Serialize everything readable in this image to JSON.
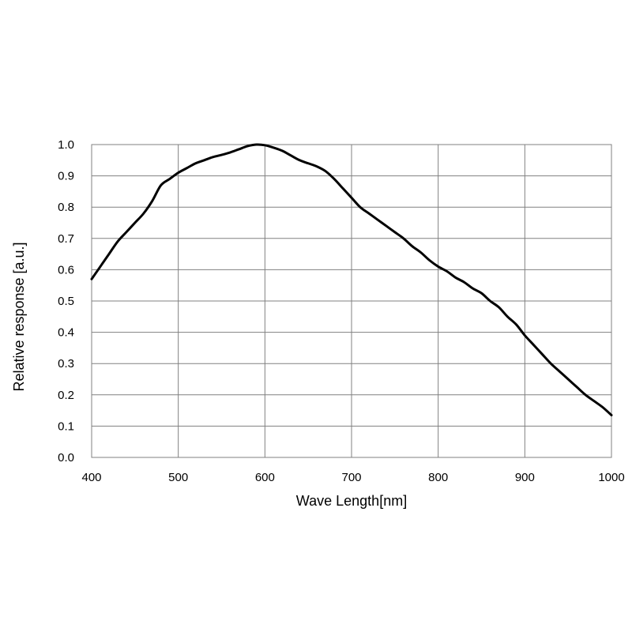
{
  "chart_data": {
    "type": "line",
    "title": "",
    "xlabel": "Wave Length[nm]",
    "ylabel": "Relative response [a.u.]",
    "xlim": [
      400,
      1000
    ],
    "ylim": [
      0.0,
      1.0
    ],
    "x_ticks": [
      400,
      500,
      600,
      700,
      800,
      900,
      1000
    ],
    "x_tick_labels": [
      "400",
      "500",
      "600",
      "700",
      "800",
      "900",
      "1000"
    ],
    "y_ticks": [
      0.0,
      0.1,
      0.2,
      0.3,
      0.4,
      0.5,
      0.6,
      0.7,
      0.8,
      0.9,
      1.0
    ],
    "y_tick_labels": [
      "0.0",
      "0.1",
      "0.2",
      "0.3",
      "0.4",
      "0.5",
      "0.6",
      "0.7",
      "0.8",
      "0.9",
      "1.0"
    ],
    "grid": true,
    "legend": "none",
    "line_color": "#000000",
    "grid_color": "#808080",
    "series": [
      {
        "x": [
          400,
          410,
          420,
          430,
          440,
          450,
          460,
          470,
          480,
          490,
          500,
          510,
          520,
          530,
          540,
          550,
          560,
          570,
          580,
          590,
          600,
          610,
          620,
          630,
          640,
          650,
          660,
          670,
          680,
          690,
          700,
          710,
          720,
          730,
          740,
          750,
          760,
          770,
          780,
          790,
          800,
          810,
          820,
          830,
          840,
          850,
          860,
          870,
          880,
          890,
          900,
          910,
          920,
          930,
          940,
          950,
          960,
          970,
          980,
          990,
          1000
        ],
        "y": [
          0.57,
          0.61,
          0.65,
          0.69,
          0.72,
          0.75,
          0.78,
          0.82,
          0.87,
          0.89,
          0.91,
          0.925,
          0.94,
          0.95,
          0.96,
          0.967,
          0.975,
          0.985,
          0.995,
          1.0,
          0.998,
          0.99,
          0.98,
          0.965,
          0.95,
          0.94,
          0.93,
          0.915,
          0.89,
          0.86,
          0.83,
          0.8,
          0.78,
          0.76,
          0.74,
          0.72,
          0.7,
          0.675,
          0.655,
          0.63,
          0.61,
          0.595,
          0.575,
          0.56,
          0.54,
          0.525,
          0.5,
          0.48,
          0.45,
          0.425,
          0.39,
          0.36,
          0.33,
          0.3,
          0.275,
          0.25,
          0.225,
          0.2,
          0.18,
          0.16,
          0.135
        ]
      }
    ]
  }
}
